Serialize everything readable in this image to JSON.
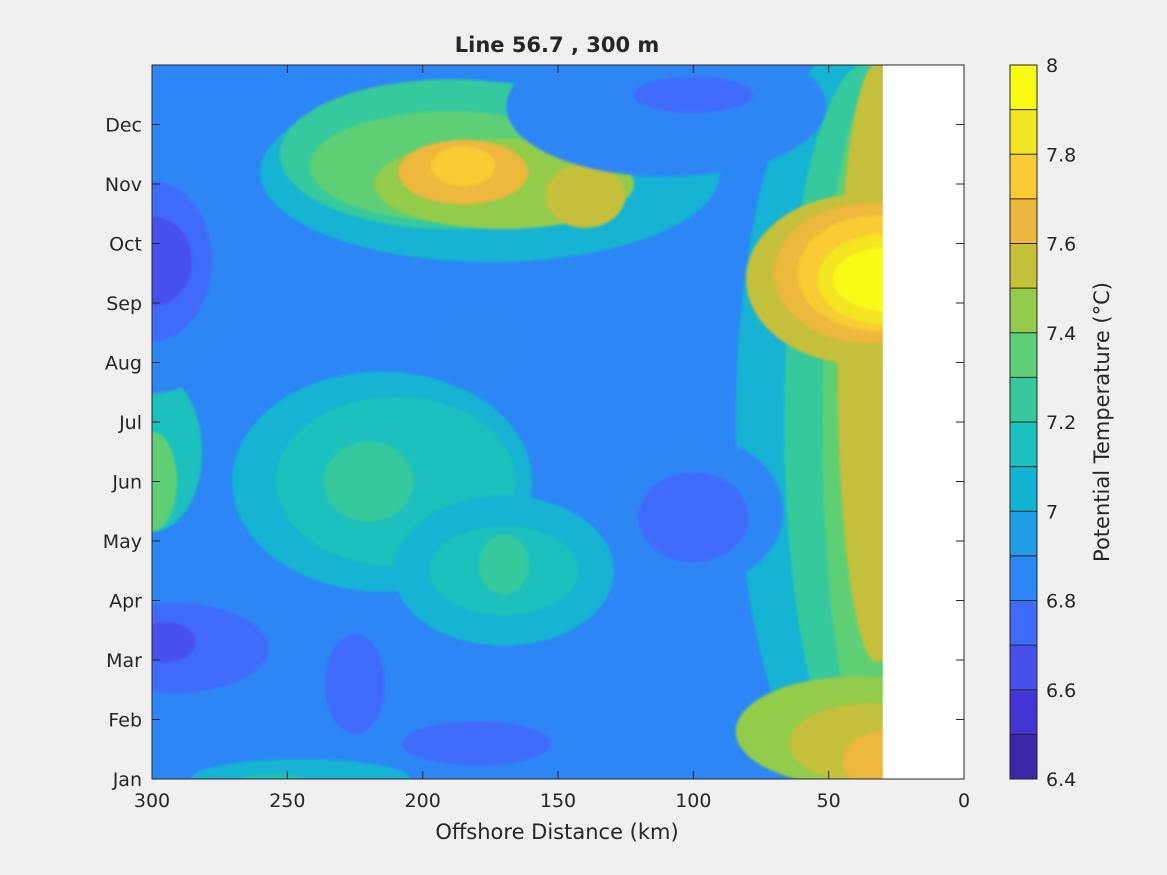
{
  "chart_data": {
    "type": "heatmap",
    "subtype": "filled-contour",
    "title": "Line 56.7 , 300 m",
    "xlabel": "Offshore Distance (km)",
    "ylabel": "",
    "x_reversed": true,
    "xlim": [
      0,
      300
    ],
    "x_ticks": [
      "300",
      "250",
      "200",
      "150",
      "100",
      "50",
      "0"
    ],
    "x_tick_values": [
      300,
      250,
      200,
      150,
      100,
      50,
      0
    ],
    "y_ticks": [
      "Jan",
      "Feb",
      "Mar",
      "Apr",
      "May",
      "Jun",
      "Jul",
      "Aug",
      "Sep",
      "Oct",
      "Nov",
      "Dec"
    ],
    "y_tick_values": [
      1,
      2,
      3,
      4,
      5,
      6,
      7,
      8,
      9,
      10,
      11,
      12
    ],
    "ylim": [
      1,
      13
    ],
    "data_x_range": [
      30,
      300
    ],
    "colorbar": {
      "label": "Potential Temperature (°C)",
      "limits": [
        6.4,
        8
      ],
      "levels": [
        6.4,
        6.5,
        6.6,
        6.7,
        6.8,
        6.9,
        7.0,
        7.1,
        7.2,
        7.3,
        7.4,
        7.5,
        7.6,
        7.7,
        7.8,
        7.9,
        8.0
      ],
      "tick_labels": [
        "6.4",
        "6.6",
        "6.8",
        "7",
        "7.2",
        "7.4",
        "7.6",
        "7.8",
        "8"
      ],
      "tick_values": [
        6.4,
        6.6,
        6.8,
        7.0,
        7.2,
        7.4,
        7.6,
        7.8,
        8.0
      ],
      "colors": [
        "#3e26a8",
        "#4435d2",
        "#4750ec",
        "#3f6bfa",
        "#2d86f5",
        "#1f9ee6",
        "#12b3d3",
        "#1cc0bd",
        "#36c99d",
        "#5ecf75",
        "#93cb4c",
        "#c5c03a",
        "#eeb73c",
        "#f8cc32",
        "#f4e524",
        "#f9fb15"
      ]
    },
    "features": [
      {
        "x": 300,
        "y": 9.7,
        "value": 6.62,
        "note": "cold patch west edge"
      },
      {
        "x": 300,
        "y": 3.3,
        "value": 6.65
      },
      {
        "x": 225,
        "y": 2.8,
        "value": 6.7
      },
      {
        "x": 180,
        "y": 1.6,
        "value": 6.7
      },
      {
        "x": 100,
        "y": 5.4,
        "value": 6.7
      },
      {
        "x": 110,
        "y": 12.5,
        "value": 6.75
      },
      {
        "x": 180,
        "y": 8.2,
        "value": 6.8
      },
      {
        "x": 185,
        "y": 11.3,
        "value": 7.8,
        "note": "warm patch"
      },
      {
        "x": 140,
        "y": 10.8,
        "value": 7.55
      },
      {
        "x": 30,
        "y": 9.5,
        "value": 7.95,
        "note": "warmest nearshore"
      },
      {
        "x": 220,
        "y": 6.0,
        "value": 7.25
      },
      {
        "x": 170,
        "y": 4.6,
        "value": 7.25
      },
      {
        "x": 300,
        "y": 6.0,
        "value": 7.3
      },
      {
        "x": 35,
        "y": 1.5,
        "value": 7.55
      }
    ]
  }
}
